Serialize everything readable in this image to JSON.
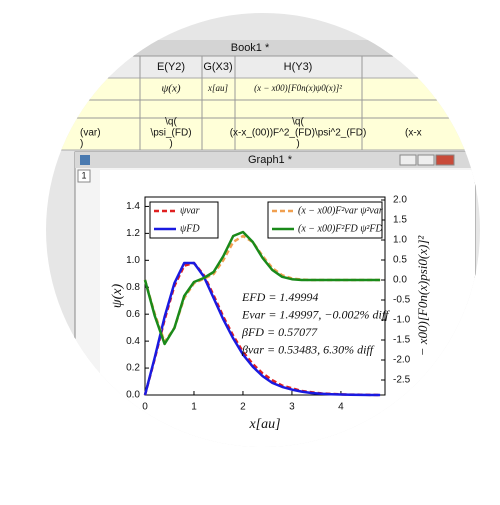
{
  "workbook": {
    "title": "Book1 *",
    "columns": [
      {
        "name": "E(Y2)",
        "long_name": "ψ(x)",
        "comment": [
          "\\q(",
          "\\psi_(FD)",
          ")"
        ]
      },
      {
        "name": "G(X3)",
        "long_name": "x[au]"
      },
      {
        "name": "H(Y3)",
        "long_name": "(x − x00)[F0n(x)ψ0(x)]²",
        "comment": [
          "\\q(",
          "(x-x_(00))F^2_(FD)\\psi^2_(FD)",
          ")"
        ]
      }
    ],
    "partial_cells": [
      "(var)",
      ")",
      "(x-x"
    ]
  },
  "graph": {
    "title": "Graph1 *",
    "layer_tab": "1"
  },
  "chart_data": {
    "type": "line",
    "xlabel": "x[au]",
    "ylabel": "ψ(x)",
    "y2label": "− x00)[F0n(x)psi0(x)]²",
    "x": [
      0,
      0.2,
      0.4,
      0.6,
      0.8,
      1.0,
      1.2,
      1.4,
      1.6,
      1.8,
      2.0,
      2.2,
      2.4,
      2.6,
      2.8,
      3.0,
      3.2,
      3.4,
      3.6,
      3.8,
      4.0,
      4.2,
      4.4,
      4.6,
      4.8
    ],
    "series": [
      {
        "name": "ψvar",
        "color": "#e02020",
        "dash": true,
        "axis": "y",
        "values": [
          0,
          0.27,
          0.56,
          0.81,
          0.96,
          0.98,
          0.89,
          0.74,
          0.58,
          0.44,
          0.32,
          0.23,
          0.16,
          0.11,
          0.07,
          0.05,
          0.03,
          0.02,
          0.012,
          0.008,
          0.005,
          0.003,
          0.002,
          0.001,
          0
        ]
      },
      {
        "name": "ψFD",
        "color": "#1a1ae0",
        "dash": false,
        "axis": "y",
        "values": [
          0,
          0.28,
          0.58,
          0.83,
          0.98,
          0.98,
          0.88,
          0.72,
          0.56,
          0.42,
          0.3,
          0.21,
          0.14,
          0.09,
          0.06,
          0.04,
          0.025,
          0.015,
          0.01,
          0.006,
          0.004,
          0.002,
          0.001,
          0,
          0
        ]
      },
      {
        "name": "(x − x00)F²var ψ²var",
        "color": "#f0a050",
        "dash": true,
        "axis": "y2",
        "values": [
          0,
          -0.85,
          -1.55,
          -1.2,
          -0.45,
          -0.08,
          0.03,
          0.15,
          0.5,
          0.95,
          1.1,
          0.95,
          0.6,
          0.3,
          0.12,
          0.04,
          0.01,
          0,
          0,
          0,
          0,
          0,
          0,
          0,
          0
        ]
      },
      {
        "name": "(x − x00)F²FD ψ²FD",
        "color": "#1a8a1a",
        "dash": false,
        "axis": "y2",
        "values": [
          0,
          -0.9,
          -1.6,
          -1.2,
          -0.4,
          -0.05,
          0.05,
          0.2,
          0.6,
          1.1,
          1.2,
          0.95,
          0.55,
          0.25,
          0.08,
          0.02,
          0,
          0,
          0,
          0,
          0,
          0,
          0,
          0,
          0
        ]
      }
    ],
    "xlim": [
      0,
      4.9
    ],
    "xticks": [
      0,
      1,
      2,
      3,
      4
    ],
    "ylim": [
      0,
      1.47
    ],
    "yticks": [
      {
        "value": 0,
        "label": "0.0"
      },
      {
        "value": 0.2,
        "label": "0.2"
      },
      {
        "value": 0.4,
        "label": "0.4"
      },
      {
        "value": 0.6,
        "label": "0.6"
      },
      {
        "value": 0.8,
        "label": "0.8"
      },
      {
        "value": 1,
        "label": "1.0"
      },
      {
        "value": 1.2,
        "label": "1.2"
      },
      {
        "value": 1.4,
        "label": "1.4"
      }
    ],
    "y2lim": [
      -2.875,
      2.075
    ],
    "y2ticks": [
      {
        "value": 2,
        "label": "2.0"
      },
      1.5,
      {
        "value": 1,
        "label": "1.0"
      },
      0.5,
      {
        "value": 0,
        "label": "0.0"
      },
      -0.5,
      {
        "value": -1,
        "label": "-1.0"
      },
      -1.5,
      {
        "value": -2,
        "label": "-2.0"
      },
      -2.5
    ],
    "annotations": [
      "EFD = 1.49994",
      "Evar = 1.49997, −0.002% diff",
      "βFD = 0.57077",
      "βvar = 0.53483, 6.30% diff"
    ]
  }
}
